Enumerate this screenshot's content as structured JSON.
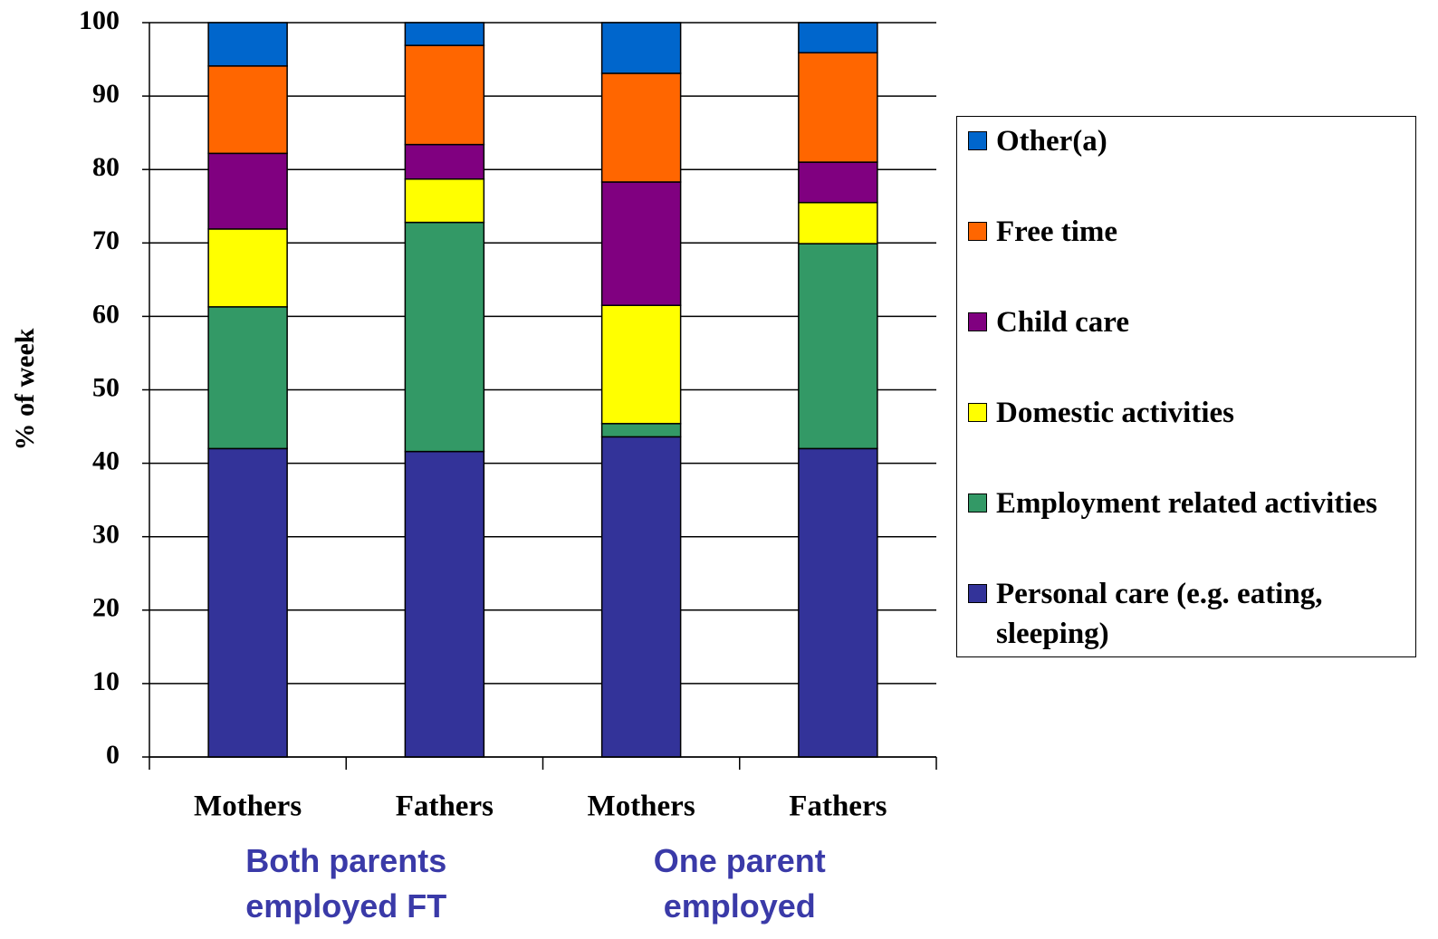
{
  "chart_data": {
    "type": "stacked_bar",
    "y_label": "% of week",
    "categories": [
      "Mothers",
      "Fathers",
      "Mothers",
      "Fathers"
    ],
    "group_labels": [
      "Both parents employed FT",
      "One parent employed"
    ],
    "series": [
      {
        "name": "Personal care (e.g. eating, sleeping)",
        "color": "#333399",
        "values": [
          42.0,
          41.6,
          43.6,
          42.0
        ]
      },
      {
        "name": "Employment related activities",
        "color": "#339966",
        "values": [
          19.3,
          31.2,
          1.8,
          27.9
        ]
      },
      {
        "name": "Domestic activities",
        "color": "#ffff00",
        "values": [
          10.6,
          5.9,
          16.1,
          5.6
        ]
      },
      {
        "name": "Child care",
        "color": "#800080",
        "values": [
          10.3,
          4.7,
          16.8,
          5.5
        ]
      },
      {
        "name": "Free time",
        "color": "#ff6600",
        "values": [
          11.9,
          13.5,
          14.8,
          14.9
        ]
      },
      {
        "name": "Other(a)",
        "color": "#0066cc",
        "values": [
          5.9,
          3.1,
          6.9,
          4.1
        ]
      }
    ],
    "ylim": [
      0,
      100
    ],
    "yticks": [
      0,
      10,
      20,
      30,
      40,
      50,
      60,
      70,
      80,
      90,
      100
    ],
    "grid": true
  }
}
